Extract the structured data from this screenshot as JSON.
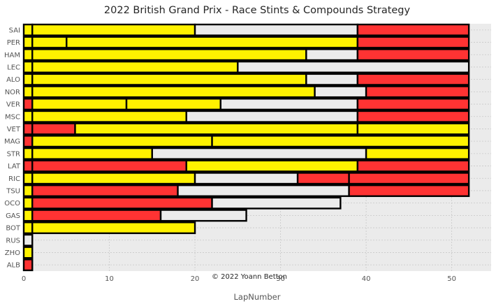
{
  "chart_data": {
    "type": "bar",
    "orientation": "horizontal-stacked",
    "title": "2022 British Grand Prix - Race Stints & Compounds Strategy",
    "xlabel": "LapNumber",
    "ylabel": "",
    "xlim": [
      0,
      54.6
    ],
    "xticks": [
      0,
      10,
      20,
      30,
      40,
      50
    ],
    "grid": true,
    "credit": "© 2022 Yoann Betton",
    "compound_colors": {
      "SOFT": "#ff3333",
      "MEDIUM": "#fff200",
      "HARD": "#ebebeb"
    },
    "drivers": [
      {
        "driver": "SAI",
        "stints": [
          {
            "compound": "MEDIUM",
            "laps": 1
          },
          {
            "compound": "MEDIUM",
            "laps": 19
          },
          {
            "compound": "HARD",
            "laps": 19
          },
          {
            "compound": "SOFT",
            "laps": 13
          }
        ]
      },
      {
        "driver": "PER",
        "stints": [
          {
            "compound": "MEDIUM",
            "laps": 1
          },
          {
            "compound": "MEDIUM",
            "laps": 4
          },
          {
            "compound": "MEDIUM",
            "laps": 34
          },
          {
            "compound": "SOFT",
            "laps": 13
          }
        ]
      },
      {
        "driver": "HAM",
        "stints": [
          {
            "compound": "MEDIUM",
            "laps": 1
          },
          {
            "compound": "MEDIUM",
            "laps": 32
          },
          {
            "compound": "HARD",
            "laps": 6
          },
          {
            "compound": "SOFT",
            "laps": 13
          }
        ]
      },
      {
        "driver": "LEC",
        "stints": [
          {
            "compound": "MEDIUM",
            "laps": 1
          },
          {
            "compound": "MEDIUM",
            "laps": 24
          },
          {
            "compound": "HARD",
            "laps": 27
          }
        ]
      },
      {
        "driver": "ALO",
        "stints": [
          {
            "compound": "MEDIUM",
            "laps": 1
          },
          {
            "compound": "MEDIUM",
            "laps": 32
          },
          {
            "compound": "HARD",
            "laps": 6
          },
          {
            "compound": "SOFT",
            "laps": 13
          }
        ]
      },
      {
        "driver": "NOR",
        "stints": [
          {
            "compound": "MEDIUM",
            "laps": 1
          },
          {
            "compound": "MEDIUM",
            "laps": 33
          },
          {
            "compound": "HARD",
            "laps": 6
          },
          {
            "compound": "SOFT",
            "laps": 12
          }
        ]
      },
      {
        "driver": "VER",
        "stints": [
          {
            "compound": "SOFT",
            "laps": 1
          },
          {
            "compound": "MEDIUM",
            "laps": 11
          },
          {
            "compound": "MEDIUM",
            "laps": 11
          },
          {
            "compound": "HARD",
            "laps": 16
          },
          {
            "compound": "SOFT",
            "laps": 13
          }
        ]
      },
      {
        "driver": "MSC",
        "stints": [
          {
            "compound": "MEDIUM",
            "laps": 1
          },
          {
            "compound": "MEDIUM",
            "laps": 18
          },
          {
            "compound": "HARD",
            "laps": 20
          },
          {
            "compound": "SOFT",
            "laps": 13
          }
        ]
      },
      {
        "driver": "VET",
        "stints": [
          {
            "compound": "SOFT",
            "laps": 1
          },
          {
            "compound": "SOFT",
            "laps": 5
          },
          {
            "compound": "MEDIUM",
            "laps": 33
          },
          {
            "compound": "MEDIUM",
            "laps": 13
          }
        ]
      },
      {
        "driver": "MAG",
        "stints": [
          {
            "compound": "SOFT",
            "laps": 1
          },
          {
            "compound": "MEDIUM",
            "laps": 21
          },
          {
            "compound": "MEDIUM",
            "laps": 30
          }
        ]
      },
      {
        "driver": "STR",
        "stints": [
          {
            "compound": "MEDIUM",
            "laps": 1
          },
          {
            "compound": "MEDIUM",
            "laps": 14
          },
          {
            "compound": "HARD",
            "laps": 25
          },
          {
            "compound": "MEDIUM",
            "laps": 12
          }
        ]
      },
      {
        "driver": "LAT",
        "stints": [
          {
            "compound": "SOFT",
            "laps": 1
          },
          {
            "compound": "SOFT",
            "laps": 18
          },
          {
            "compound": "MEDIUM",
            "laps": 20
          },
          {
            "compound": "SOFT",
            "laps": 13
          }
        ]
      },
      {
        "driver": "RIC",
        "stints": [
          {
            "compound": "MEDIUM",
            "laps": 1
          },
          {
            "compound": "MEDIUM",
            "laps": 19
          },
          {
            "compound": "HARD",
            "laps": 12
          },
          {
            "compound": "SOFT",
            "laps": 6
          },
          {
            "compound": "SOFT",
            "laps": 14
          }
        ]
      },
      {
        "driver": "TSU",
        "stints": [
          {
            "compound": "MEDIUM",
            "laps": 1
          },
          {
            "compound": "SOFT",
            "laps": 17
          },
          {
            "compound": "HARD",
            "laps": 20
          },
          {
            "compound": "SOFT",
            "laps": 14
          }
        ]
      },
      {
        "driver": "OCO",
        "stints": [
          {
            "compound": "MEDIUM",
            "laps": 1
          },
          {
            "compound": "SOFT",
            "laps": 21
          },
          {
            "compound": "HARD",
            "laps": 15
          }
        ]
      },
      {
        "driver": "GAS",
        "stints": [
          {
            "compound": "MEDIUM",
            "laps": 1
          },
          {
            "compound": "SOFT",
            "laps": 15
          },
          {
            "compound": "HARD",
            "laps": 10
          }
        ]
      },
      {
        "driver": "BOT",
        "stints": [
          {
            "compound": "MEDIUM",
            "laps": 1
          },
          {
            "compound": "MEDIUM",
            "laps": 19
          }
        ]
      },
      {
        "driver": "RUS",
        "stints": [
          {
            "compound": "HARD",
            "laps": 1
          }
        ]
      },
      {
        "driver": "ZHO",
        "stints": [
          {
            "compound": "MEDIUM",
            "laps": 1
          }
        ]
      },
      {
        "driver": "ALB",
        "stints": [
          {
            "compound": "SOFT",
            "laps": 1
          }
        ]
      }
    ]
  }
}
